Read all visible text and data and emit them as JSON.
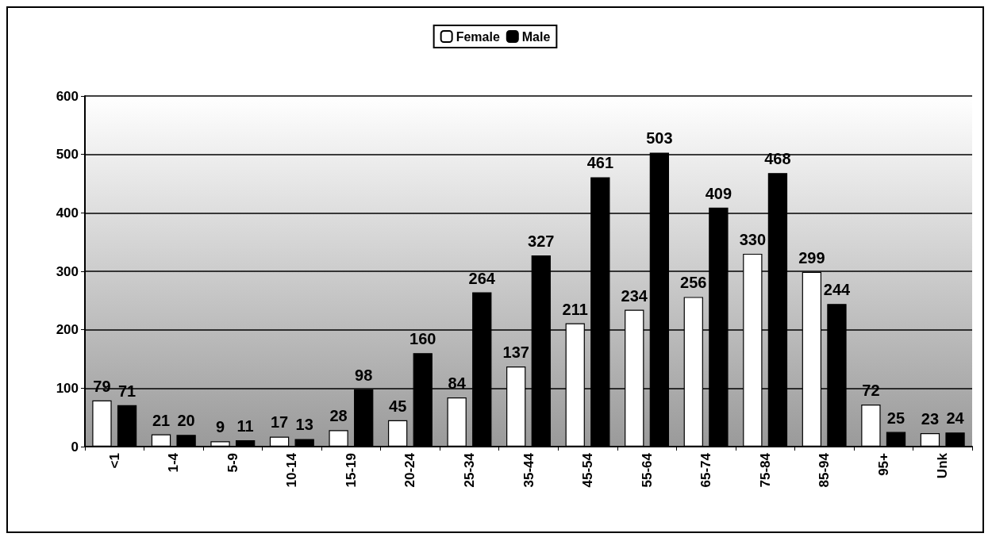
{
  "chart_data": {
    "type": "bar",
    "categories": [
      "<1",
      "1-4",
      "5-9",
      "10-14",
      "15-19",
      "20-24",
      "25-34",
      "35-44",
      "45-54",
      "55-64",
      "65-74",
      "75-84",
      "85-94",
      "95+",
      "Unk"
    ],
    "series": [
      {
        "name": "Female",
        "color": "#ffffff",
        "values": [
          79,
          21,
          9,
          17,
          28,
          45,
          84,
          137,
          211,
          234,
          256,
          330,
          299,
          72,
          23
        ]
      },
      {
        "name": "Male",
        "color": "#000000",
        "values": [
          71,
          20,
          11,
          13,
          98,
          160,
          264,
          327,
          461,
          503,
          409,
          468,
          244,
          25,
          24
        ]
      }
    ],
    "ylim": [
      0,
      600
    ],
    "yticks": [
      0,
      100,
      200,
      300,
      400,
      500,
      600
    ],
    "grid": "y",
    "legend": "top",
    "data_labels": true
  }
}
